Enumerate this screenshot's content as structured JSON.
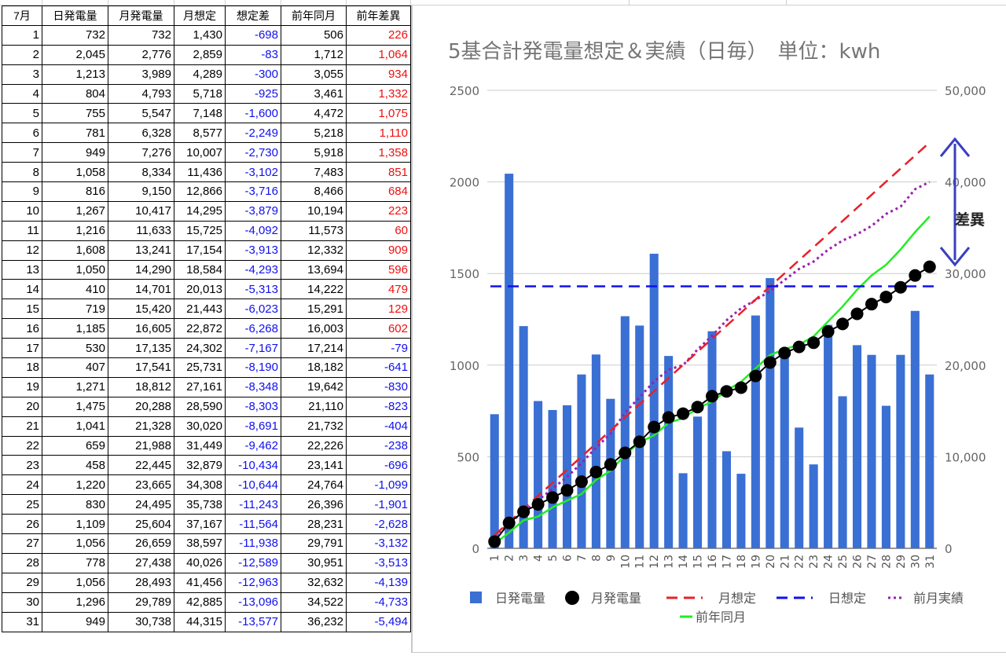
{
  "table": {
    "headers": [
      "7月",
      "日発電量",
      "月発電量",
      "月想定",
      "想定差",
      "前年同月",
      "前年差異"
    ],
    "rows": [
      [
        "1",
        "732",
        "732",
        "1,430",
        "-698",
        "506",
        "226"
      ],
      [
        "2",
        "2,045",
        "2,776",
        "2,859",
        "-83",
        "1,712",
        "1,064"
      ],
      [
        "3",
        "1,213",
        "3,989",
        "4,289",
        "-300",
        "3,055",
        "934"
      ],
      [
        "4",
        "804",
        "4,793",
        "5,718",
        "-925",
        "3,461",
        "1,332"
      ],
      [
        "5",
        "755",
        "5,547",
        "7,148",
        "-1,600",
        "4,472",
        "1,075"
      ],
      [
        "6",
        "781",
        "6,328",
        "8,577",
        "-2,249",
        "5,218",
        "1,110"
      ],
      [
        "7",
        "949",
        "7,276",
        "10,007",
        "-2,730",
        "5,918",
        "1,358"
      ],
      [
        "8",
        "1,058",
        "8,334",
        "11,436",
        "-3,102",
        "7,483",
        "851"
      ],
      [
        "9",
        "816",
        "9,150",
        "12,866",
        "-3,716",
        "8,466",
        "684"
      ],
      [
        "10",
        "1,267",
        "10,417",
        "14,295",
        "-3,879",
        "10,194",
        "223"
      ],
      [
        "11",
        "1,216",
        "11,633",
        "15,725",
        "-4,092",
        "11,573",
        "60"
      ],
      [
        "12",
        "1,608",
        "13,241",
        "17,154",
        "-3,913",
        "12,332",
        "909"
      ],
      [
        "13",
        "1,050",
        "14,290",
        "18,584",
        "-4,293",
        "13,694",
        "596"
      ],
      [
        "14",
        "410",
        "14,701",
        "20,013",
        "-5,313",
        "14,222",
        "479"
      ],
      [
        "15",
        "719",
        "15,420",
        "21,443",
        "-6,023",
        "15,291",
        "129"
      ],
      [
        "16",
        "1,185",
        "16,605",
        "22,872",
        "-6,268",
        "16,003",
        "602"
      ],
      [
        "17",
        "530",
        "17,135",
        "24,302",
        "-7,167",
        "17,214",
        "-79"
      ],
      [
        "18",
        "407",
        "17,541",
        "25,731",
        "-8,190",
        "18,182",
        "-641"
      ],
      [
        "19",
        "1,271",
        "18,812",
        "27,161",
        "-8,348",
        "19,642",
        "-830"
      ],
      [
        "20",
        "1,475",
        "20,288",
        "28,590",
        "-8,303",
        "21,110",
        "-823"
      ],
      [
        "21",
        "1,041",
        "21,328",
        "30,020",
        "-8,691",
        "21,732",
        "-404"
      ],
      [
        "22",
        "659",
        "21,988",
        "31,449",
        "-9,462",
        "22,226",
        "-238"
      ],
      [
        "23",
        "458",
        "22,445",
        "32,879",
        "-10,434",
        "23,141",
        "-696"
      ],
      [
        "24",
        "1,220",
        "23,665",
        "34,308",
        "-10,644",
        "24,764",
        "-1,099"
      ],
      [
        "25",
        "830",
        "24,495",
        "35,738",
        "-11,243",
        "26,396",
        "-1,901"
      ],
      [
        "26",
        "1,109",
        "25,604",
        "37,167",
        "-11,564",
        "28,231",
        "-2,628"
      ],
      [
        "27",
        "1,056",
        "26,659",
        "38,597",
        "-11,938",
        "29,791",
        "-3,132"
      ],
      [
        "28",
        "778",
        "27,438",
        "40,026",
        "-12,589",
        "30,951",
        "-3,513"
      ],
      [
        "29",
        "1,056",
        "28,493",
        "41,456",
        "-12,963",
        "32,632",
        "-4,139"
      ],
      [
        "30",
        "1,296",
        "29,789",
        "42,885",
        "-13,096",
        "34,522",
        "-4,733"
      ],
      [
        "31",
        "949",
        "30,738",
        "44,315",
        "-13,577",
        "36,232",
        "-5,494"
      ]
    ]
  },
  "colors": {
    "positive_text": "#ee1010",
    "negative_text": "#1010ee",
    "bar": "#3a6fd4",
    "monthly_actual": "#000000",
    "monthly_plan": "#e8202a",
    "daily_plan": "#1010ee",
    "prev_month": "#9b1fb0",
    "prev_year": "#22ee22",
    "diff_arrow": "#3a3fc0"
  },
  "chart_data": {
    "type": "bar+line",
    "title": "5基合計発電量想定＆実績（日毎）　単位：kwh",
    "categories": [
      "1",
      "2",
      "3",
      "4",
      "5",
      "6",
      "7",
      "8",
      "9",
      "10",
      "11",
      "12",
      "13",
      "14",
      "15",
      "16",
      "17",
      "18",
      "19",
      "20",
      "21",
      "22",
      "23",
      "24",
      "25",
      "26",
      "27",
      "28",
      "29",
      "30",
      "31"
    ],
    "left_axis": {
      "ticks": [
        "0",
        "500",
        "1000",
        "1500",
        "2000",
        "2500"
      ],
      "ylim": [
        0,
        2500
      ]
    },
    "right_axis": {
      "ticks": [
        "0",
        "10,000",
        "20,000",
        "30,000",
        "40,000",
        "50,000"
      ],
      "ylim": [
        0,
        50000
      ]
    },
    "series": [
      {
        "name": "日発電量",
        "axis": "left",
        "kind": "bar",
        "values": [
          732,
          2045,
          1213,
          804,
          755,
          781,
          949,
          1058,
          816,
          1267,
          1216,
          1608,
          1050,
          410,
          719,
          1185,
          530,
          407,
          1271,
          1475,
          1041,
          659,
          458,
          1220,
          830,
          1109,
          1056,
          778,
          1056,
          1296,
          949
        ]
      },
      {
        "name": "月発電量",
        "axis": "right",
        "kind": "line-dots",
        "values": [
          732,
          2776,
          3989,
          4793,
          5547,
          6328,
          7276,
          8334,
          9150,
          10417,
          11633,
          13241,
          14290,
          14701,
          15420,
          16605,
          17135,
          17541,
          18812,
          20288,
          21328,
          21988,
          22445,
          23665,
          24495,
          25604,
          26659,
          27438,
          28493,
          29789,
          30738
        ]
      },
      {
        "name": "月想定",
        "axis": "right",
        "kind": "dashed",
        "values": [
          1430,
          2859,
          4289,
          5718,
          7148,
          8577,
          10007,
          11436,
          12866,
          14295,
          15725,
          17154,
          18584,
          20013,
          21443,
          22872,
          24302,
          25731,
          27161,
          28590,
          30020,
          31449,
          32879,
          34308,
          35738,
          37167,
          38597,
          40026,
          41456,
          42885,
          44315
        ]
      },
      {
        "name": "日想定",
        "axis": "left",
        "kind": "dashed-flat",
        "value": 1430
      },
      {
        "name": "前月実績",
        "axis": "right",
        "kind": "dotted",
        "values": [
          1350,
          2700,
          4000,
          5250,
          6500,
          7800,
          9300,
          11000,
          12500,
          14800,
          16500,
          18200,
          19500,
          20000,
          21700,
          23200,
          24900,
          26200,
          27100,
          28100,
          29300,
          30500,
          31300,
          32600,
          33600,
          34300,
          35200,
          36500,
          37300,
          39200,
          40000
        ]
      },
      {
        "name": "前年同月",
        "axis": "right",
        "kind": "solid",
        "values": [
          506,
          1712,
          3055,
          3461,
          4472,
          5218,
          5918,
          7483,
          8466,
          10194,
          11573,
          12332,
          13694,
          14222,
          15291,
          16003,
          17214,
          18182,
          19642,
          21110,
          21732,
          22226,
          23141,
          24764,
          26396,
          28231,
          29791,
          30951,
          32632,
          34522,
          36232
        ]
      }
    ],
    "annotation": "差異",
    "legend": [
      "日発電量",
      "月発電量",
      "月想定",
      "日想定",
      "前月実績",
      "前年同月"
    ],
    "legend_position": "bottom"
  }
}
